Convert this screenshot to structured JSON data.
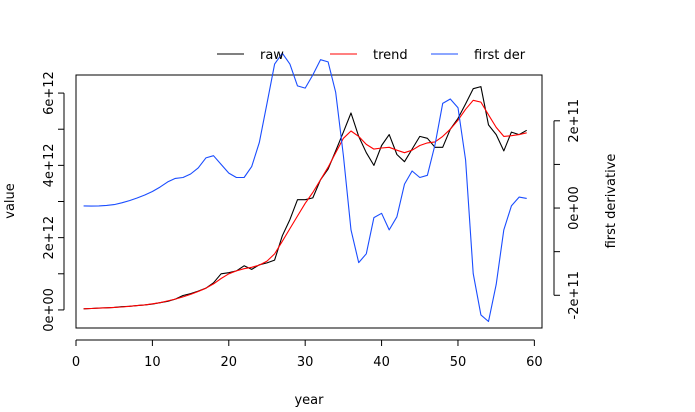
{
  "chart_data": {
    "type": "line",
    "xlabel": "year",
    "ylabel": "value",
    "y2label": "first derivative",
    "xlim": [
      0,
      61
    ],
    "ylim": [
      -500000000000.0,
      6500000000000.0
    ],
    "y2lim": [
      -275000000000.0,
      305000000000.0
    ],
    "grid": false,
    "legend": {
      "position": "top-center",
      "orientation": "horizontal"
    },
    "x_ticks": [
      0,
      10,
      20,
      30,
      40,
      50,
      60
    ],
    "y_ticks": [
      0,
      1000000000000.0,
      2000000000000.0,
      3000000000000.0,
      4000000000000.0,
      5000000000000.0,
      6000000000000.0
    ],
    "y_tick_labels": [
      "0e+00",
      "",
      "2e+12",
      "",
      "4e+12",
      "",
      "6e+12"
    ],
    "y2_ticks": [
      -200000000000.0,
      -100000000000.0,
      0,
      100000000000.0,
      200000000000.0
    ],
    "y2_tick_labels": [
      "-2e+11",
      "",
      "0e+00",
      "",
      "2e+11"
    ],
    "x": [
      1,
      2,
      3,
      4,
      5,
      6,
      7,
      8,
      9,
      10,
      11,
      12,
      13,
      14,
      15,
      16,
      17,
      18,
      19,
      20,
      21,
      22,
      23,
      24,
      25,
      26,
      27,
      28,
      29,
      30,
      31,
      32,
      33,
      34,
      35,
      36,
      37,
      38,
      39,
      40,
      41,
      42,
      43,
      44,
      45,
      46,
      47,
      48,
      49,
      50,
      51,
      52,
      53,
      54,
      55,
      56,
      57,
      58,
      59
    ],
    "series": [
      {
        "name": "raw",
        "color": "#000000",
        "axis": "left",
        "values": [
          30000000000.0,
          40000000000.0,
          50000000000.0,
          60000000000.0,
          70000000000.0,
          90000000000.0,
          100000000000.0,
          120000000000.0,
          140000000000.0,
          160000000000.0,
          200000000000.0,
          240000000000.0,
          300000000000.0,
          400000000000.0,
          450000000000.0,
          520000000000.0,
          600000000000.0,
          750000000000.0,
          1000000000000.0,
          1030000000000.0,
          1080000000000.0,
          1220000000000.0,
          1120000000000.0,
          1250000000000.0,
          1300000000000.0,
          1380000000000.0,
          2050000000000.0,
          2500000000000.0,
          3050000000000.0,
          3050000000000.0,
          3100000000000.0,
          3600000000000.0,
          3900000000000.0,
          4400000000000.0,
          4920000000000.0,
          5450000000000.0,
          4800000000000.0,
          4350000000000.0,
          4000000000000.0,
          4550000000000.0,
          4850000000000.0,
          4300000000000.0,
          4100000000000.0,
          4450000000000.0,
          4800000000000.0,
          4750000000000.0,
          4500000000000.0,
          4500000000000.0,
          5000000000000.0,
          5300000000000.0,
          5700000000000.0,
          6120000000000.0,
          6180000000000.0,
          5120000000000.0,
          4850000000000.0,
          4400000000000.0,
          4920000000000.0,
          4850000000000.0,
          4970000000000.0
        ]
      },
      {
        "name": "trend",
        "color": "#ff0000",
        "axis": "left",
        "values": [
          30000000000.0,
          40000000000.0,
          50000000000.0,
          60000000000.0,
          70000000000.0,
          80000000000.0,
          100000000000.0,
          120000000000.0,
          140000000000.0,
          170000000000.0,
          200000000000.0,
          250000000000.0,
          300000000000.0,
          360000000000.0,
          430000000000.0,
          510000000000.0,
          600000000000.0,
          720000000000.0,
          870000000000.0,
          1000000000000.0,
          1080000000000.0,
          1140000000000.0,
          1180000000000.0,
          1240000000000.0,
          1350000000000.0,
          1550000000000.0,
          1900000000000.0,
          2250000000000.0,
          2600000000000.0,
          2950000000000.0,
          3250000000000.0,
          3600000000000.0,
          3950000000000.0,
          4350000000000.0,
          4750000000000.0,
          4950000000000.0,
          4800000000000.0,
          4580000000000.0,
          4450000000000.0,
          4480000000000.0,
          4500000000000.0,
          4420000000000.0,
          4350000000000.0,
          4420000000000.0,
          4550000000000.0,
          4620000000000.0,
          4650000000000.0,
          4800000000000.0,
          5000000000000.0,
          5250000000000.0,
          5550000000000.0,
          5800000000000.0,
          5750000000000.0,
          5400000000000.0,
          5050000000000.0,
          4800000000000.0,
          4820000000000.0,
          4850000000000.0,
          4900000000000.0
        ]
      },
      {
        "name": "first der",
        "color": "#1a4dff",
        "axis": "right",
        "values": [
          5000000000.0,
          4500000000.0,
          5000000000.0,
          6000000000.0,
          8000000000.0,
          12000000000.0,
          17000000000.0,
          23000000000.0,
          30000000000.0,
          38000000000.0,
          48000000000.0,
          60000000000.0,
          68000000000.0,
          70000000000.0,
          78000000000.0,
          92000000000.0,
          115000000000.0,
          120000000000.0,
          100000000000.0,
          80000000000.0,
          70000000000.0,
          70000000000.0,
          95000000000.0,
          150000000000.0,
          240000000000.0,
          330000000000.0,
          355000000000.0,
          330000000000.0,
          280000000000.0,
          275000000000.0,
          305000000000.0,
          340000000000.0,
          335000000000.0,
          265000000000.0,
          120000000000.0,
          -50000000000.0,
          -125000000000.0,
          -105000000000.0,
          -22000000000.0,
          -12000000000.0,
          -50000000000.0,
          -20000000000.0,
          55000000000.0,
          85000000000.0,
          70000000000.0,
          75000000000.0,
          145000000000.0,
          240000000000.0,
          250000000000.0,
          230000000000.0,
          110000000000.0,
          -150000000000.0,
          -245000000000.0,
          -260000000000.0,
          -175000000000.0,
          -50000000000.0,
          5000000000.0,
          25000000000.0,
          22000000000.0
        ]
      }
    ]
  }
}
